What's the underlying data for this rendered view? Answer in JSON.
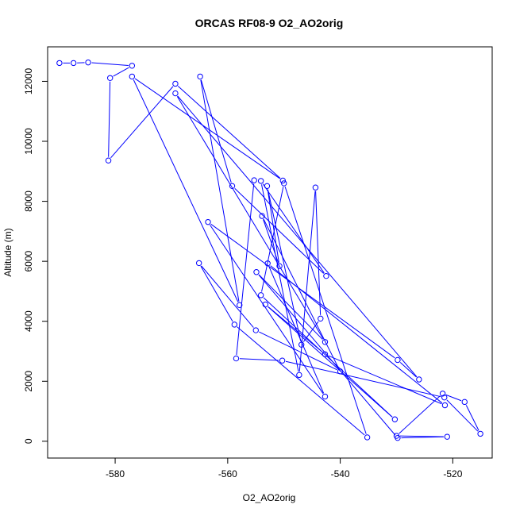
{
  "chart_data": {
    "type": "line",
    "title": "ORCAS RF08-9 O2_AO2orig",
    "xlabel": "O2_AO2orig",
    "ylabel": "Altitude (m)",
    "xlim": [
      -592,
      -513
    ],
    "ylim": [
      -560,
      13150
    ],
    "x_ticks": [
      -580,
      -560,
      -540,
      -520
    ],
    "y_ticks": [
      0,
      2000,
      4000,
      6000,
      8000,
      10000,
      12000
    ],
    "grid": false,
    "marker": "open-circle",
    "line_color": "#0000ff",
    "series": [
      {
        "points": [
          [
            -589.9,
            12610
          ],
          [
            -587.4,
            12610
          ],
          [
            -584.8,
            12630
          ],
          [
            -577.0,
            12520
          ],
          [
            -580.9,
            12110
          ],
          [
            -581.2,
            9360
          ],
          [
            -569.3,
            11920
          ],
          [
            -550.2,
            8690
          ],
          [
            -577.0,
            12160
          ],
          [
            -557.9,
            4540
          ],
          [
            -564.9,
            12160
          ],
          [
            -559.2,
            8510
          ],
          [
            -542.5,
            5510
          ],
          [
            -554.1,
            8680
          ],
          [
            -547.3,
            2210
          ],
          [
            -544.4,
            8460
          ],
          [
            -543.5,
            4090
          ],
          [
            -546.9,
            3220
          ],
          [
            -553.0,
            8510
          ],
          [
            -550.8,
            5840
          ],
          [
            -553.9,
            7510
          ],
          [
            -540.0,
            2330
          ],
          [
            -555.0,
            3700
          ],
          [
            -565.1,
            5940
          ],
          [
            -558.8,
            3890
          ],
          [
            -535.2,
            130
          ],
          [
            -550.0,
            8600
          ],
          [
            -554.1,
            4870
          ],
          [
            -530.3,
            730
          ],
          [
            -553.3,
            4560
          ],
          [
            -542.7,
            2900
          ],
          [
            -521.4,
            1200
          ],
          [
            -552.9,
            5930
          ],
          [
            -542.7,
            1490
          ],
          [
            -563.5,
            7310
          ],
          [
            -529.8,
            2710
          ],
          [
            -526.0,
            2060
          ],
          [
            -569.3,
            11600
          ],
          [
            -542.7,
            3310
          ],
          [
            -554.9,
            5640
          ],
          [
            -529.8,
            110
          ],
          [
            -521.0,
            150
          ],
          [
            -530.0,
            180
          ],
          [
            -521.8,
            1590
          ],
          [
            -517.9,
            1310
          ],
          [
            -515.1,
            250
          ],
          [
            -521.5,
            1460
          ],
          [
            -550.3,
            2690
          ],
          [
            -558.5,
            2760
          ],
          [
            -555.3,
            8700
          ]
        ]
      }
    ]
  }
}
